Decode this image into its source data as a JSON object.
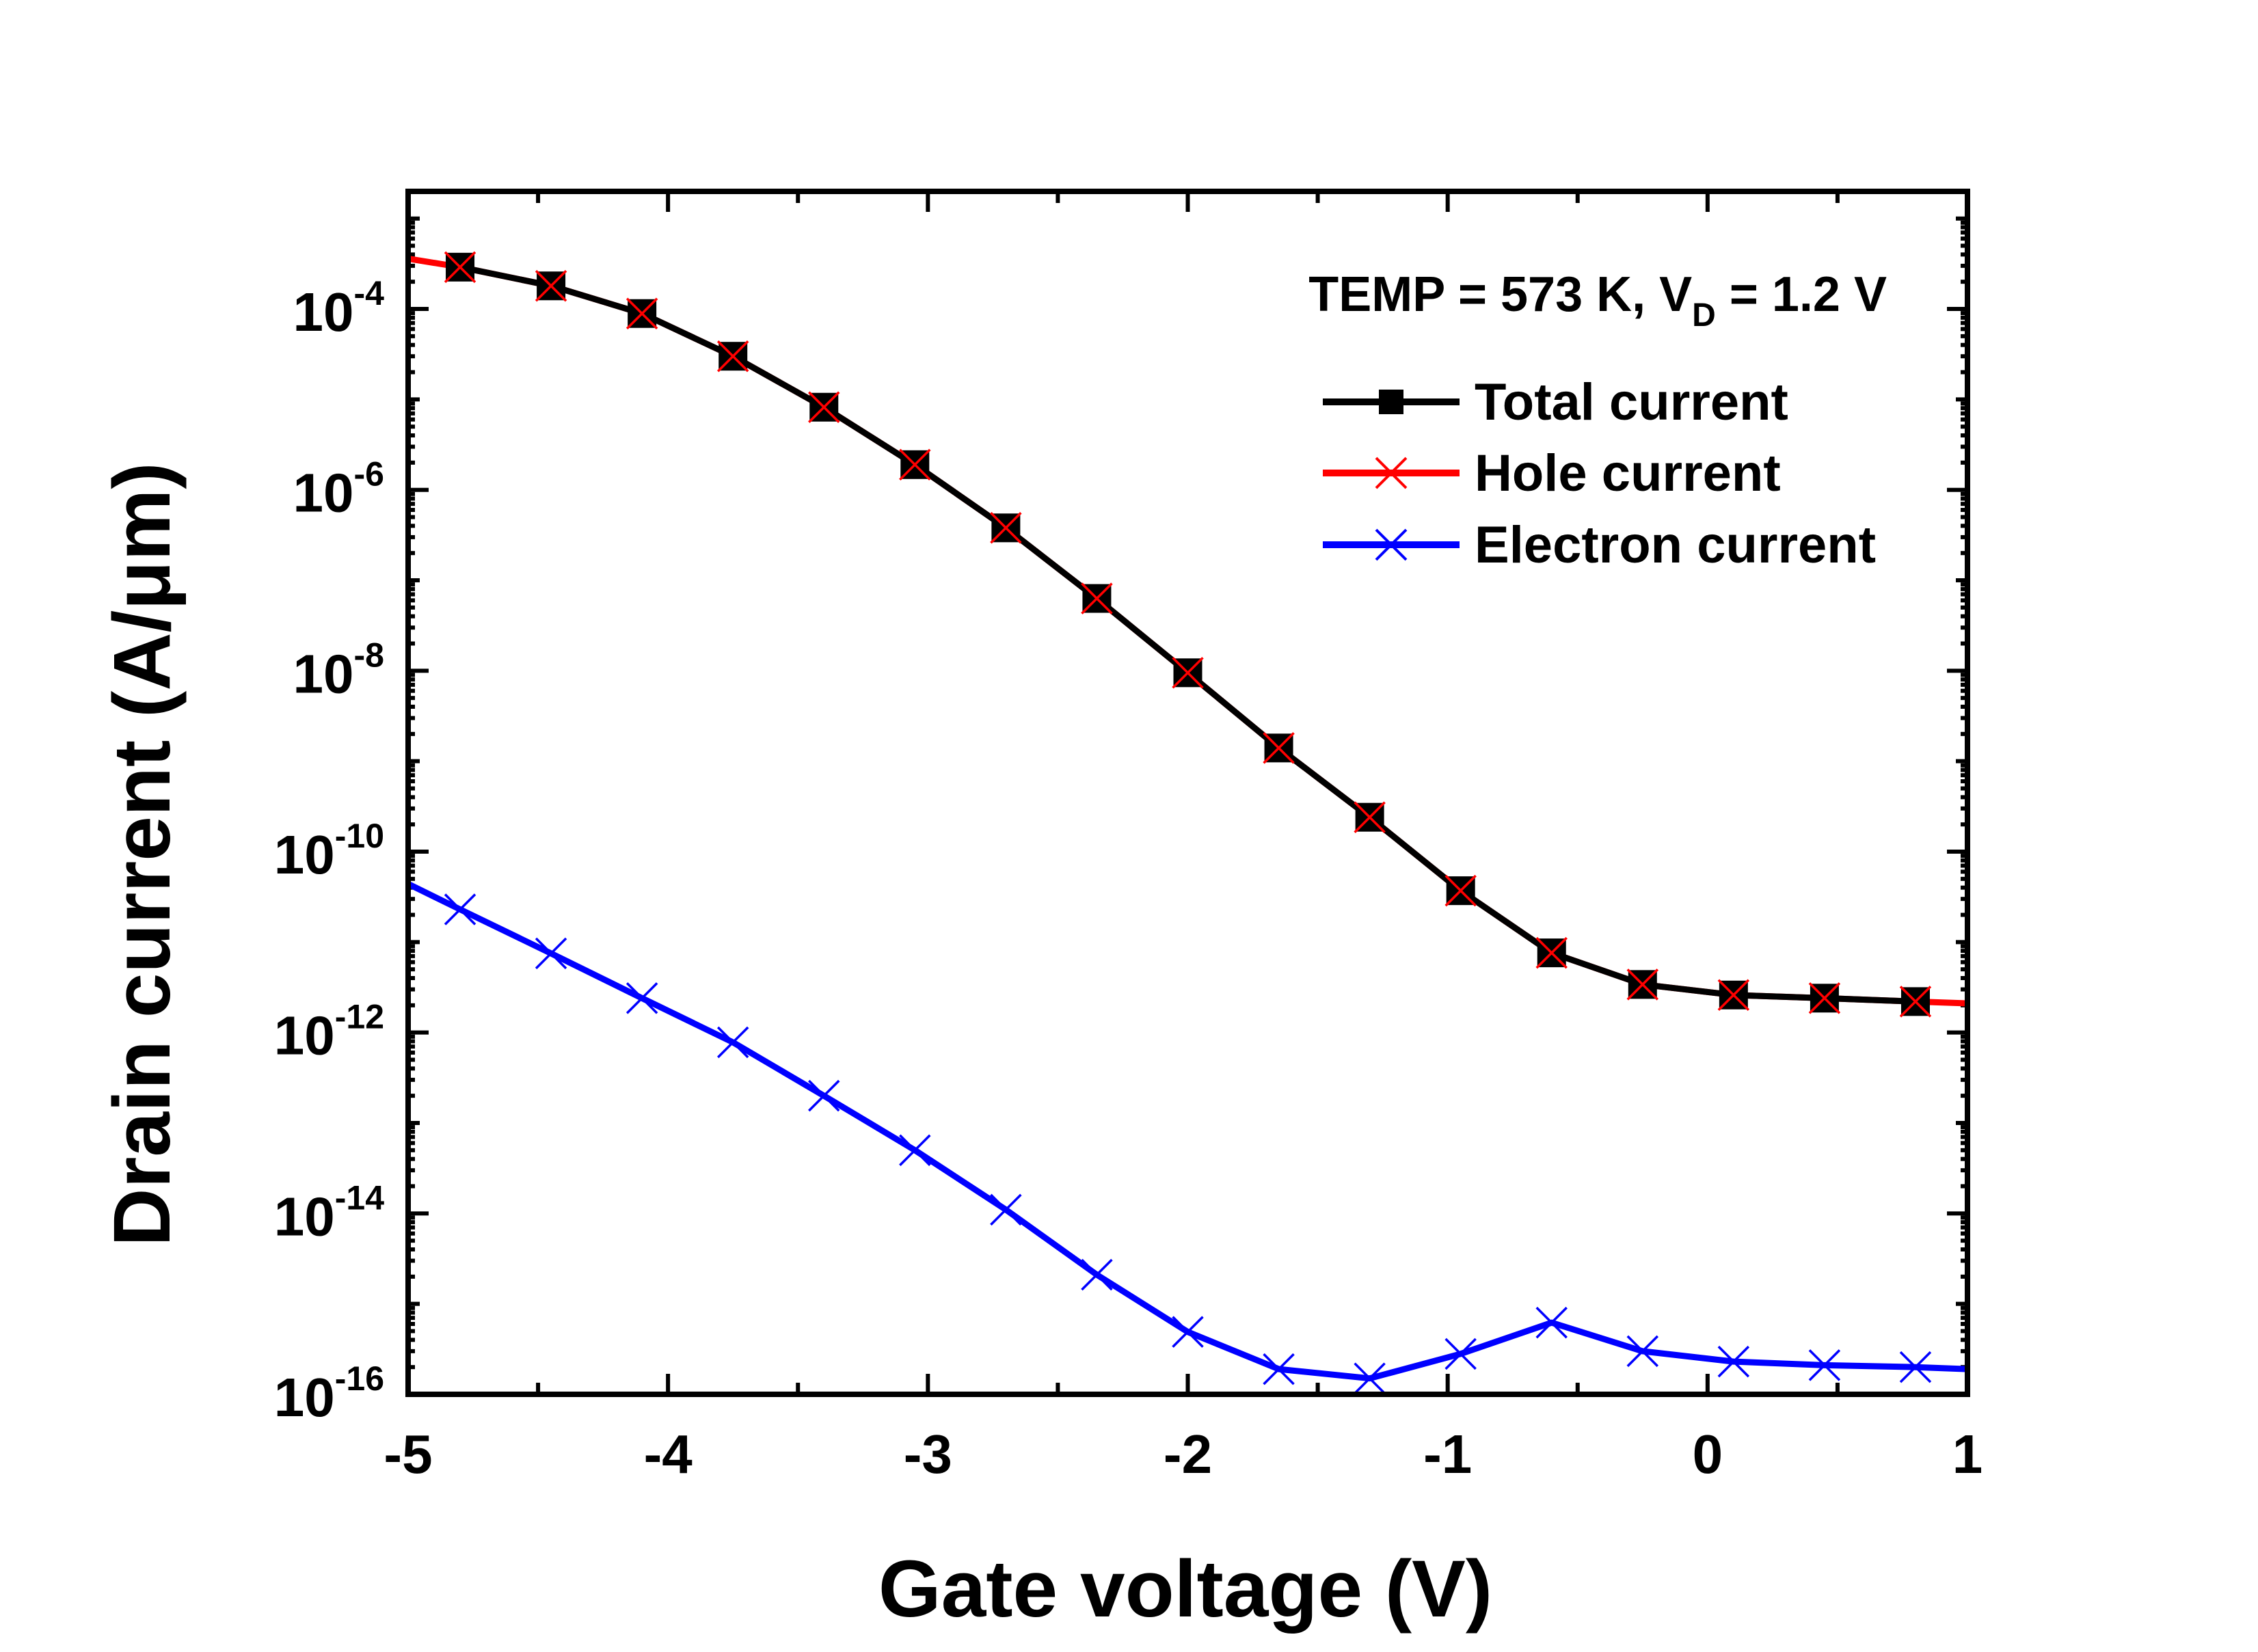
{
  "chart_data": {
    "type": "line",
    "title": "",
    "xlabel": "Gate voltage (V)",
    "ylabel": "Drain current (A/μm)",
    "xlim": [
      -5,
      1
    ],
    "ylim": [
      1e-16,
      0.001
    ],
    "yscale": "log",
    "x_ticks": [
      -5,
      -4,
      -3,
      -2,
      -1,
      0,
      1
    ],
    "x_tick_labels": [
      "-5",
      "-4",
      "-3",
      "-2",
      "-1",
      "0",
      "1"
    ],
    "y_ticks": [
      1e-16,
      1e-14,
      1e-12,
      1e-10,
      1e-08,
      1e-06,
      0.0001
    ],
    "y_tick_labels": [
      {
        "base": "10",
        "exp": "-16"
      },
      {
        "base": "10",
        "exp": "-14"
      },
      {
        "base": "10",
        "exp": "-12"
      },
      {
        "base": "10",
        "exp": "-10"
      },
      {
        "base": "10",
        "exp": "-8"
      },
      {
        "base": "10",
        "exp": "-6"
      },
      {
        "base": "10",
        "exp": "-4"
      }
    ],
    "grid": false,
    "legend_position": "top-right",
    "annotation": {
      "prefix": "TEMP = 573 K, V",
      "sub": "D",
      "suffix": " = 1.2 V"
    },
    "series": [
      {
        "name": "Total current",
        "color": "#000000",
        "marker": "square",
        "x": [
          -4.8,
          -4.45,
          -4.1,
          -3.75,
          -3.4,
          -3.05,
          -2.7,
          -2.35,
          -2.0,
          -1.65,
          -1.3,
          -0.95,
          -0.6,
          -0.25,
          0.1,
          0.45,
          0.8
        ],
        "y": [
          0.00029,
          0.00018,
          8.9e-05,
          3e-05,
          8.2e-06,
          1.9e-06,
          3.8e-07,
          6.3e-08,
          9.5e-09,
          1.4e-09,
          2.4e-10,
          3.7e-11,
          7.6e-12,
          3.4e-12,
          2.6e-12,
          2.4e-12,
          2.2e-12
        ]
      },
      {
        "name": "Hole current",
        "color": "#ff0000",
        "marker": "x",
        "x": [
          -5.0,
          -4.8,
          -4.45,
          -4.1,
          -3.75,
          -3.4,
          -3.05,
          -2.7,
          -2.35,
          -2.0,
          -1.65,
          -1.3,
          -0.95,
          -0.6,
          -0.25,
          0.1,
          0.45,
          0.8,
          1.0
        ],
        "y": [
          0.00036,
          0.00029,
          0.00018,
          8.9e-05,
          3e-05,
          8.2e-06,
          1.9e-06,
          3.8e-07,
          6.3e-08,
          9.5e-09,
          1.4e-09,
          2.4e-10,
          3.7e-11,
          7.6e-12,
          3.4e-12,
          2.6e-12,
          2.4e-12,
          2.2e-12,
          2.1e-12
        ]
      },
      {
        "name": "Electron current",
        "color": "#0000ff",
        "marker": "x",
        "x": [
          -5.0,
          -4.8,
          -4.45,
          -4.1,
          -3.75,
          -3.4,
          -3.05,
          -2.7,
          -2.35,
          -2.0,
          -1.65,
          -1.3,
          -0.95,
          -0.6,
          -0.25,
          0.1,
          0.45,
          0.8,
          1.0
        ],
        "y": [
          4.4e-11,
          2.3e-11,
          7.5e-12,
          2.4e-12,
          7.8e-13,
          2e-13,
          5e-14,
          1.1e-14,
          2.1e-15,
          4.9e-16,
          1.9e-16,
          1.5e-16,
          2.8e-16,
          6.2e-16,
          3e-16,
          2.3e-16,
          2.1e-16,
          2e-16,
          1.9e-16
        ]
      }
    ]
  }
}
